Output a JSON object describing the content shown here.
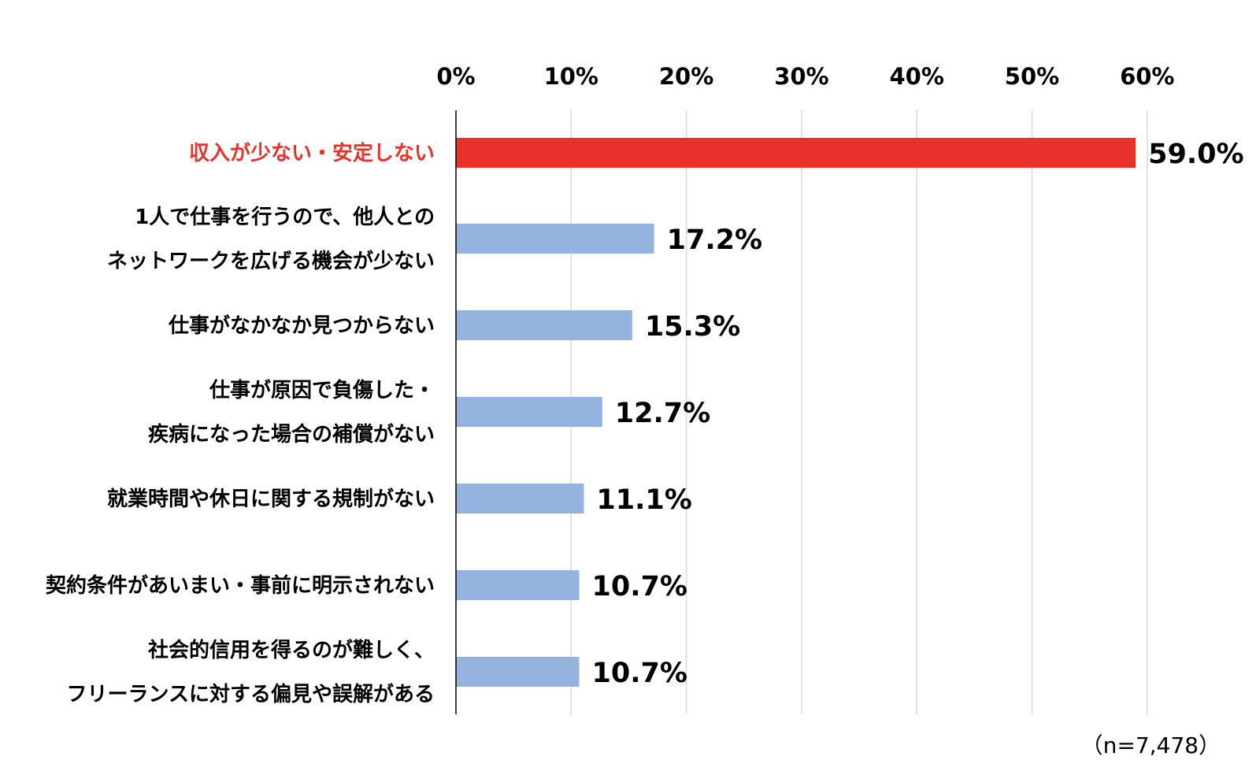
{
  "chart_data": {
    "type": "bar",
    "orientation": "horizontal",
    "categories": [
      [
        "収入が少ない・安定しない"
      ],
      [
        "1人で仕事を行うので、他人との",
        "ネットワークを広げる機会が少ない"
      ],
      [
        "仕事がなかなか見つからない"
      ],
      [
        "仕事が原因で負傷した・",
        "疾病になった場合の補償がない"
      ],
      [
        "就業時間や休日に関する規制がない"
      ],
      [
        "契約条件があいまい・事前に明示されない"
      ],
      [
        "社会的信用を得るのが難しく、",
        "フリーランスに対する偏見や誤解がある"
      ]
    ],
    "values": [
      59.0,
      17.2,
      15.3,
      12.7,
      11.1,
      10.7,
      10.7
    ],
    "value_labels": [
      "59.0%",
      "17.2%",
      "15.3%",
      "12.7%",
      "11.1%",
      "10.7%",
      "10.7%"
    ],
    "x_ticks": [
      0,
      10,
      20,
      30,
      40,
      50,
      60
    ],
    "x_tick_labels": [
      "0%",
      "10%",
      "20%",
      "30%",
      "40%",
      "50%",
      "60%"
    ],
    "xlim": [
      0,
      60
    ],
    "grid": true,
    "axis_position": "top",
    "highlight_index": 0,
    "colors": {
      "highlight": "#e8312a",
      "default": "#95b3df",
      "grid": "#d9d9d9"
    }
  },
  "note": "（n=7,478）"
}
